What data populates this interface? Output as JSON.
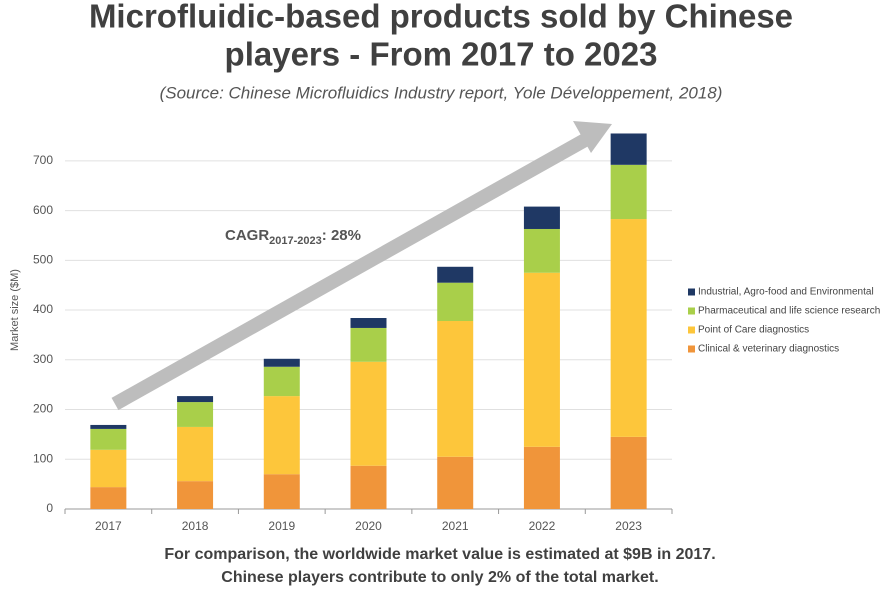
{
  "chart_data": {
    "type": "stacked_bar",
    "title": [
      "Microfluidic-based products sold by Chinese",
      "players - From 2017 to 2023"
    ],
    "subtitle": "(Source: Chinese Microfluidics Industry report, Yole Développement, 2018)",
    "y_label": "Market size ($M)",
    "annotation": {
      "text": "CAGR",
      "sub": "2017-2023",
      "suffix": ": 28%"
    },
    "footer": [
      "For comparison, the worldwide market value is estimated at $9B in 2017.",
      "Chinese players contribute to only 2% of the total market."
    ],
    "categories": [
      "2017",
      "2018",
      "2019",
      "2020",
      "2021",
      "2022",
      "2023"
    ],
    "series": [
      {
        "name": "Clinical & veterinary diagnostics",
        "color": "#f0953a",
        "values": [
          44,
          56,
          70,
          87,
          105,
          125,
          145
        ]
      },
      {
        "name": "Point of Care diagnostics",
        "color": "#fdc63b",
        "values": [
          75,
          109,
          157,
          209,
          273,
          350,
          438
        ]
      },
      {
        "name": "Pharmaceutical and life science research",
        "color": "#a9cf4a",
        "values": [
          42,
          50,
          59,
          68,
          77,
          88,
          109
        ]
      },
      {
        "name": "Industrial, Agro-food and Environmental",
        "color": "#1f3864",
        "values": [
          8,
          12,
          16,
          20,
          32,
          45,
          63
        ]
      }
    ],
    "ylim": [
      0,
      760
    ],
    "yticks": [
      0,
      100,
      200,
      300,
      400,
      500,
      600,
      700
    ],
    "grid": true,
    "legend": "right"
  }
}
